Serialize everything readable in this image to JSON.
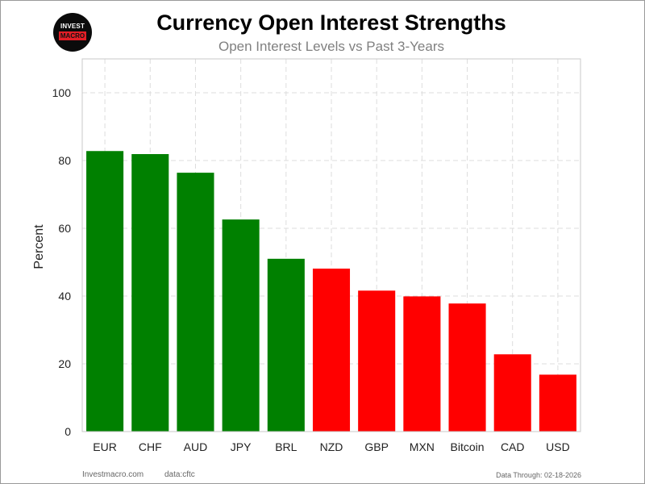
{
  "header": {
    "title": "Currency Open Interest Strengths",
    "subtitle": "Open Interest Levels vs Past 3-Years"
  },
  "logo": {
    "text_top": "INVEST",
    "text_bottom": "MACRO"
  },
  "footer": {
    "site": "Investmacro.com",
    "source": "data:cftc",
    "date": "Data Through: 02-18-2026"
  },
  "colors": {
    "positive": "#008000",
    "negative": "#ff0000",
    "grid": "#dddddd"
  },
  "chart_data": {
    "type": "bar",
    "title": "Currency Open Interest Strengths",
    "subtitle": "Open Interest Levels vs Past 3-Years",
    "xlabel": "",
    "ylabel": "Percent",
    "ylim": [
      0,
      110
    ],
    "yticks": [
      0,
      20,
      40,
      60,
      80,
      100
    ],
    "grid": true,
    "grid_style": "dashed",
    "categories": [
      "EUR",
      "CHF",
      "AUD",
      "JPY",
      "BRL",
      "NZD",
      "GBP",
      "MXN",
      "Bitcoin",
      "CAD",
      "USD"
    ],
    "values": [
      82.8,
      81.9,
      76.4,
      62.6,
      51.0,
      48.1,
      41.6,
      39.9,
      37.8,
      22.8,
      16.8
    ],
    "bar_colors": [
      "#008000",
      "#008000",
      "#008000",
      "#008000",
      "#008000",
      "#ff0000",
      "#ff0000",
      "#ff0000",
      "#ff0000",
      "#ff0000",
      "#ff0000"
    ]
  }
}
